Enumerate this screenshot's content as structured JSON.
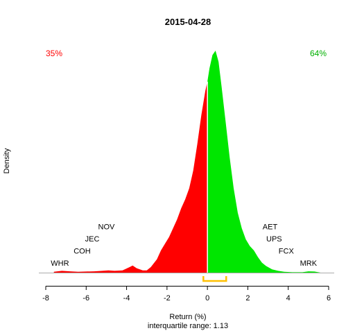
{
  "chart_data": {
    "type": "area",
    "title": "2015-04-28",
    "xlabel": "Return (%)",
    "ylabel": "Density",
    "subtitle": "interquartile range: 1.13",
    "xlim": [
      -8,
      6
    ],
    "x_ticks": [
      "-8",
      "-6",
      "-4",
      "-2",
      "0",
      "2",
      "4",
      "6"
    ],
    "grid": false,
    "split_x": 0,
    "negative_share_label": "35%",
    "positive_share_label": "64%",
    "colors": {
      "negative": "#ff0000",
      "positive": "#00e600",
      "iqr_bracket": "#ffc000"
    },
    "iqr_range": [
      -0.2,
      0.93
    ],
    "density": [
      [
        -7.6,
        0.004
      ],
      [
        -7.2,
        0.008
      ],
      [
        -6.8,
        0.006
      ],
      [
        -6.4,
        0.004
      ],
      [
        -6.0,
        0.005
      ],
      [
        -5.6,
        0.006
      ],
      [
        -5.2,
        0.008
      ],
      [
        -4.9,
        0.01
      ],
      [
        -4.6,
        0.008
      ],
      [
        -4.2,
        0.01
      ],
      [
        -3.85,
        0.025
      ],
      [
        -3.7,
        0.032
      ],
      [
        -3.5,
        0.02
      ],
      [
        -3.2,
        0.01
      ],
      [
        -3.0,
        0.01
      ],
      [
        -2.8,
        0.025
      ],
      [
        -2.5,
        0.06
      ],
      [
        -2.3,
        0.1
      ],
      [
        -2.1,
        0.13
      ],
      [
        -1.9,
        0.16
      ],
      [
        -1.7,
        0.2
      ],
      [
        -1.5,
        0.24
      ],
      [
        -1.3,
        0.29
      ],
      [
        -1.1,
        0.33
      ],
      [
        -0.9,
        0.38
      ],
      [
        -0.7,
        0.46
      ],
      [
        -0.5,
        0.58
      ],
      [
        -0.3,
        0.71
      ],
      [
        -0.1,
        0.82
      ],
      [
        0.0,
        0.86
      ],
      [
        0.1,
        0.92
      ],
      [
        0.25,
        0.98
      ],
      [
        0.4,
        1.0
      ],
      [
        0.55,
        0.95
      ],
      [
        0.7,
        0.84
      ],
      [
        0.9,
        0.68
      ],
      [
        1.1,
        0.52
      ],
      [
        1.3,
        0.38
      ],
      [
        1.5,
        0.27
      ],
      [
        1.7,
        0.2
      ],
      [
        1.9,
        0.15
      ],
      [
        2.1,
        0.12
      ],
      [
        2.3,
        0.1
      ],
      [
        2.5,
        0.07
      ],
      [
        2.7,
        0.045
      ],
      [
        2.9,
        0.03
      ],
      [
        3.2,
        0.015
      ],
      [
        3.5,
        0.008
      ],
      [
        3.8,
        0.004
      ],
      [
        4.2,
        0.002
      ],
      [
        4.7,
        0.002
      ],
      [
        5.0,
        0.006
      ],
      [
        5.3,
        0.005
      ],
      [
        5.6,
        0.0
      ]
    ],
    "annotations": [
      {
        "text": "WHR",
        "x": -7.3,
        "row": 1
      },
      {
        "text": "COH",
        "x": -6.2,
        "row": 2
      },
      {
        "text": "JEC",
        "x": -5.7,
        "row": 3
      },
      {
        "text": "NOV",
        "x": -5.0,
        "row": 4
      },
      {
        "text": "MRK",
        "x": 5.0,
        "row": 1
      },
      {
        "text": "FCX",
        "x": 3.9,
        "row": 2
      },
      {
        "text": "UPS",
        "x": 3.3,
        "row": 3
      },
      {
        "text": "AET",
        "x": 3.1,
        "row": 4
      }
    ]
  }
}
